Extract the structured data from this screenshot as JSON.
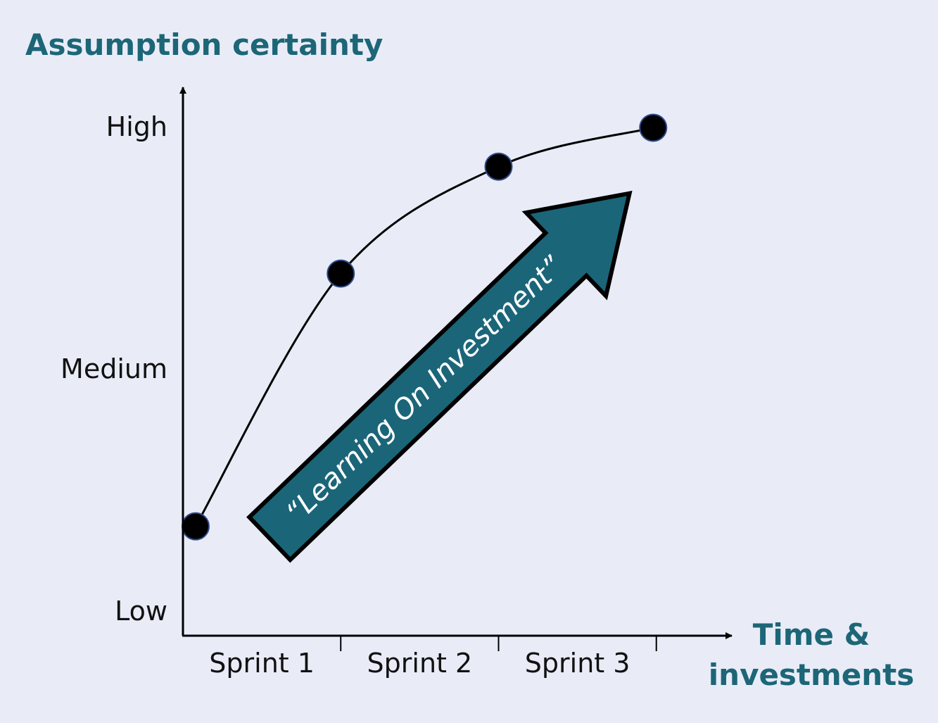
{
  "colors": {
    "background": "#e9ecf7",
    "accent": "#1c6677",
    "arrow_fill": "#1b6579",
    "axis": "#000000",
    "point_stroke": "#2f4a8a"
  },
  "chart_data": {
    "type": "line",
    "ylabel": "Assumption certainty",
    "xlabel": "Time &\ninvestments",
    "xlabel_lines": [
      "Time &",
      "investments"
    ],
    "y_ticks": [
      "Low",
      "Medium",
      "High"
    ],
    "x_categories": [
      "Sprint 1",
      "Sprint 2",
      "Sprint 3"
    ],
    "xlim": [
      0,
      3.3
    ],
    "ylim": [
      0,
      2.1
    ],
    "grid": false,
    "series": [
      {
        "points": [
          {
            "x": 0.08,
            "y": 0.45
          },
          {
            "x": 1.0,
            "y": 1.49
          },
          {
            "x": 2.0,
            "y": 1.93
          },
          {
            "x": 2.98,
            "y": 2.09
          }
        ]
      }
    ],
    "annotation": {
      "text": "“Learning On Investment”",
      "shape": "arrow",
      "from": {
        "x": 0.55,
        "y": 0.4
      },
      "to": {
        "x": 2.83,
        "y": 1.82
      }
    }
  }
}
